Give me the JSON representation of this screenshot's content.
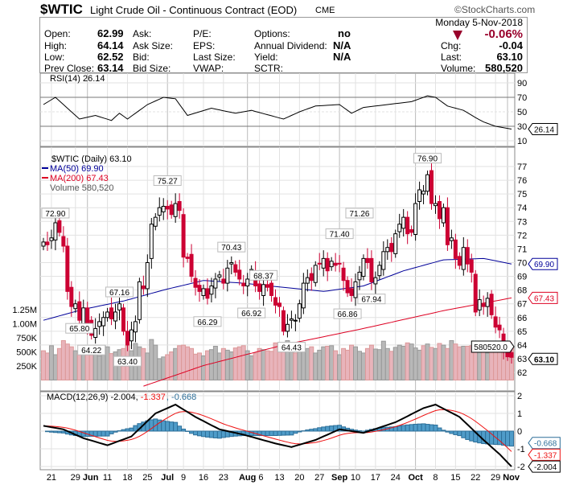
{
  "header": {
    "symbol": "$WTIC",
    "name": "Light Crude Oil - Continuous Contract (EOD)",
    "exchange": "CME",
    "watermark": "©StockCharts.com",
    "date": "Monday  5-Nov-2018",
    "change_pct": "-0.06%",
    "down_color": "#99002b"
  },
  "quote": {
    "open_l": "Open:",
    "open": "62.99",
    "high_l": "High:",
    "high": "64.14",
    "low_l": "Low:",
    "low": "62.52",
    "prev_l": "Prev Close:",
    "prev": "63.14",
    "ask_l": "Ask:",
    "asksize_l": "Ask Size:",
    "bid_l": "Bid:",
    "bidsize_l": "Bid Size:",
    "pe_l": "P/E:",
    "eps_l": "EPS:",
    "lastsize_l": "Last Size:",
    "vwap_l": "VWAP:",
    "options_l": "Options:",
    "options": "no",
    "div_l": "Annual Dividend:",
    "div": "N/A",
    "yield_l": "Yield:",
    "yield": "N/A",
    "sctr_l": "SCTR:",
    "chg_l": "Chg:",
    "chg": "-0.04",
    "last_l": "Last:",
    "last": "63.10",
    "vol_l": "Volume:",
    "vol": "580,520"
  },
  "chart_data": {
    "type": "candlestick",
    "legend": {
      "rsi": "RSI(14) 26.14",
      "price": "$WTIC (Daily) 63.10",
      "ma50": "MA(50) 69.90",
      "ma200": "MA(200) 67.43",
      "volume": "Volume 580,520",
      "macd_a": "MACD(12,26,9) -2.004, ",
      "macd_b": "-1.337",
      "macd_c": ", -0.668"
    },
    "colors": {
      "up": "#000000",
      "down": "#cc0033",
      "ma50": "#000099",
      "ma200": "#dd0022",
      "vol_down": "#e8b4bb",
      "vol_up": "#b8b8b8",
      "hist": "#4f9cc9",
      "macd": "#000000",
      "signal": "#ee1111"
    },
    "close": [
      71.5,
      71.3,
      71.8,
      72.9,
      72.2,
      71.2,
      67.9,
      66.8,
      67.0,
      65.8,
      66.7,
      65.5,
      64.7,
      65.2,
      65.7,
      66.0,
      66.4,
      65.9,
      66.4,
      67.0,
      65.0,
      64.0,
      65.1,
      65.7,
      68.6,
      68.1,
      70.0,
      72.8,
      73.3,
      74.0,
      74.1,
      73.9,
      73.5,
      74.3,
      73.8,
      70.4,
      70.3,
      69.0,
      68.2,
      67.9,
      68.1,
      67.4,
      68.3,
      68.8,
      69.1,
      68.5,
      69.6,
      70.0,
      69.3,
      68.8,
      68.3,
      68.8,
      69.5,
      68.3,
      67.9,
      68.4,
      68.2,
      67.6,
      66.9,
      66.8,
      65.0,
      65.5,
      65.9,
      65.8,
      67.0,
      68.5,
      68.9,
      68.7,
      69.8,
      69.9,
      70.3,
      69.4,
      70.1,
      69.8,
      69.9,
      68.7,
      67.8,
      67.6,
      68.6,
      69.3,
      70.3,
      70.0,
      68.6,
      68.9,
      69.8,
      70.8,
      71.1,
      70.8,
      72.1,
      72.8,
      73.3,
      72.1,
      72.2,
      74.3,
      75.3,
      75.2,
      76.4,
      74.3,
      74.3,
      73.2,
      74.0,
      71.3,
      71.8,
      70.3,
      69.8,
      71.1,
      69.9,
      69.3,
      66.4,
      67.3,
      66.8,
      67.4,
      66.2,
      65.3,
      65.1,
      63.7,
      63.14,
      63.1
    ],
    "volume_k": [
      520,
      480,
      610,
      450,
      560,
      700,
      640,
      590,
      520,
      470,
      610,
      480,
      560,
      520,
      430,
      610,
      590,
      470,
      500,
      540,
      560,
      610,
      520,
      650,
      590,
      560,
      480,
      720,
      620,
      380,
      410,
      450,
      500,
      560,
      610,
      620,
      590,
      560,
      460,
      480,
      430,
      520,
      540,
      600,
      480,
      560,
      530,
      500,
      570,
      590,
      610,
      520,
      430,
      480,
      560,
      540,
      520,
      510,
      660,
      590,
      620,
      700,
      520,
      480,
      550,
      530,
      560,
      590,
      480,
      530,
      590,
      600,
      610,
      520,
      450,
      560,
      530,
      620,
      590,
      510,
      480,
      560,
      620,
      550,
      540,
      690,
      560,
      510,
      580,
      620,
      600,
      660,
      640,
      570,
      530,
      610,
      640,
      580,
      560,
      650,
      620,
      560,
      700,
      640,
      590,
      600,
      600,
      610,
      680,
      640,
      560,
      480,
      590,
      610,
      570,
      640,
      560,
      580
    ],
    "ma50": [
      [
        0,
        65.8
      ],
      [
        10,
        66.6
      ],
      [
        20,
        67.2
      ],
      [
        30,
        68.0
      ],
      [
        40,
        68.7
      ],
      [
        50,
        68.5
      ],
      [
        60,
        68.2
      ],
      [
        70,
        67.9
      ],
      [
        80,
        68.3
      ],
      [
        90,
        69.4
      ],
      [
        100,
        70.2
      ],
      [
        110,
        70.3
      ],
      [
        117,
        69.9
      ]
    ],
    "ma200": [
      [
        25,
        61.0
      ],
      [
        40,
        62.5
      ],
      [
        60,
        64.0
      ],
      [
        80,
        65.2
      ],
      [
        100,
        66.5
      ],
      [
        117,
        67.43
      ]
    ],
    "rsi": [
      [
        0,
        60
      ],
      [
        3,
        70
      ],
      [
        9,
        40
      ],
      [
        13,
        45
      ],
      [
        17,
        38
      ],
      [
        19,
        48
      ],
      [
        21,
        40
      ],
      [
        26,
        60
      ],
      [
        30,
        70
      ],
      [
        33,
        68
      ],
      [
        36,
        45
      ],
      [
        42,
        55
      ],
      [
        48,
        48
      ],
      [
        52,
        52
      ],
      [
        56,
        46
      ],
      [
        60,
        40
      ],
      [
        64,
        50
      ],
      [
        68,
        58
      ],
      [
        74,
        60
      ],
      [
        77,
        48
      ],
      [
        80,
        56
      ],
      [
        86,
        60
      ],
      [
        92,
        64
      ],
      [
        96,
        72
      ],
      [
        98,
        70
      ],
      [
        101,
        58
      ],
      [
        105,
        52
      ],
      [
        108,
        42
      ],
      [
        110,
        36
      ],
      [
        113,
        30
      ],
      [
        115,
        28
      ],
      [
        117,
        26.14
      ]
    ],
    "macd": [
      [
        0,
        0.3
      ],
      [
        5,
        0.1
      ],
      [
        10,
        -0.4
      ],
      [
        16,
        -0.8
      ],
      [
        22,
        -0.3
      ],
      [
        28,
        1.0
      ],
      [
        33,
        1.5
      ],
      [
        38,
        0.8
      ],
      [
        44,
        0.1
      ],
      [
        50,
        -0.2
      ],
      [
        58,
        -0.7
      ],
      [
        62,
        -0.9
      ],
      [
        68,
        -0.5
      ],
      [
        74,
        0.1
      ],
      [
        80,
        -0.1
      ],
      [
        88,
        0.5
      ],
      [
        95,
        1.3
      ],
      [
        98,
        1.5
      ],
      [
        104,
        0.8
      ],
      [
        110,
        -0.5
      ],
      [
        114,
        -1.3
      ],
      [
        117,
        -2.004
      ]
    ],
    "price_ticks": [
      62,
      63,
      64,
      65,
      66,
      67,
      68,
      69,
      70,
      71,
      72,
      73,
      74,
      75,
      76,
      77
    ],
    "volume_ticks": [
      [
        "250K",
        250
      ],
      [
        "500K",
        500
      ],
      [
        "750K",
        750
      ],
      [
        "1.00M",
        1000
      ],
      [
        "1.25M",
        1250
      ]
    ],
    "rsi_ticks": [
      90,
      70,
      50,
      30,
      10
    ],
    "macd_ticks": [
      2,
      1,
      0,
      -1,
      -2
    ],
    "price_labels": [
      [
        3,
        "72.90",
        true
      ],
      [
        9,
        "65.80",
        false
      ],
      [
        12,
        "64.22",
        false
      ],
      [
        19,
        "67.16",
        true
      ],
      [
        21,
        "63.40",
        false
      ],
      [
        31,
        "75.27",
        true
      ],
      [
        41,
        "66.29",
        false
      ],
      [
        47,
        "70.43",
        true
      ],
      [
        52,
        "66.92",
        false
      ],
      [
        55,
        "68.37",
        true
      ],
      [
        62,
        "64.43",
        false
      ],
      [
        74,
        "71.40",
        true
      ],
      [
        76,
        "66.86",
        false
      ],
      [
        79,
        "71.26",
        true
      ],
      [
        82,
        "67.94",
        false
      ],
      [
        96,
        "76.90",
        true
      ]
    ],
    "last_labels": {
      "ma50": "69.90",
      "ma200": "67.43",
      "volume": "580520.0",
      "price": "63.10",
      "rsi": "26.14",
      "hist": "-0.668",
      "signal": "-1.337",
      "macd": "-2.004"
    },
    "x_ticks": [
      [
        2,
        "21"
      ],
      [
        8,
        "29"
      ],
      [
        11,
        "Jun"
      ],
      [
        16,
        "11"
      ],
      [
        21,
        "18"
      ],
      [
        26,
        "25"
      ],
      [
        31,
        "Jul"
      ],
      [
        35,
        "9"
      ],
      [
        40,
        "16"
      ],
      [
        45,
        "23"
      ],
      [
        51,
        "Aug"
      ],
      [
        54,
        "6"
      ],
      [
        59,
        "13"
      ],
      [
        64,
        "20"
      ],
      [
        69,
        "27"
      ],
      [
        74,
        "Sep"
      ],
      [
        78,
        "10"
      ],
      [
        83,
        "17"
      ],
      [
        88,
        "24"
      ],
      [
        93,
        "Oct"
      ],
      [
        98,
        "8"
      ],
      [
        103,
        "15"
      ],
      [
        108,
        "22"
      ],
      [
        113,
        "29"
      ],
      [
        116,
        "Nov"
      ]
    ]
  }
}
